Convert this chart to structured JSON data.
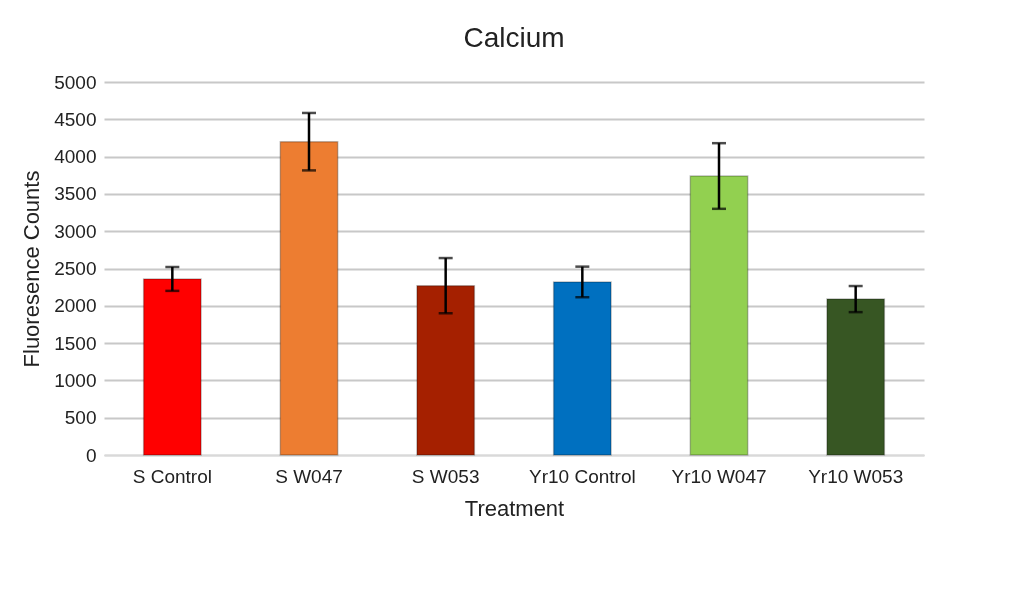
{
  "chart_data": {
    "type": "bar",
    "title": "Calcium",
    "xlabel": "Treatment",
    "ylabel": "Fluoresence Counts",
    "categories": [
      "S Control",
      "S W047",
      "S W053",
      "Yr10 Control",
      "Yr10 W047",
      "Yr10 W053"
    ],
    "values": [
      2360,
      4200,
      2270,
      2320,
      3740,
      2090
    ],
    "colors": [
      "#ff0000",
      "#ed7d31",
      "#a52000",
      "#0070c0",
      "#92d050",
      "#375623"
    ],
    "errors": [
      160,
      385,
      370,
      205,
      440,
      175
    ],
    "ylim": [
      0,
      5000
    ],
    "yticks": [
      0,
      500,
      1000,
      1500,
      2000,
      2500,
      3000,
      3500,
      4000,
      4500,
      5000
    ],
    "grid": "y"
  }
}
